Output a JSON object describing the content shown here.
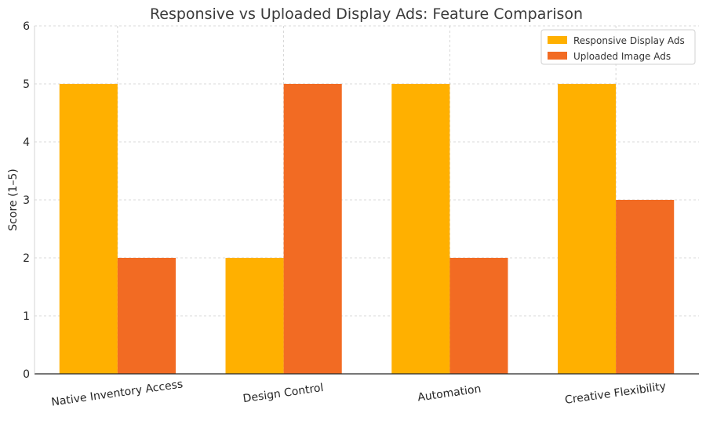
{
  "chart_data": {
    "type": "bar",
    "title": "Responsive vs Uploaded Display Ads: Feature Comparison",
    "xlabel": "",
    "ylabel": "Score (1–5)",
    "ylim": [
      0,
      6
    ],
    "yticks": [
      0,
      1,
      2,
      3,
      4,
      5,
      6
    ],
    "grid": true,
    "legend_position": "top-right",
    "categories": [
      "Native Inventory Access",
      "Design Control",
      "Automation",
      "Creative Flexibility"
    ],
    "series": [
      {
        "name": "Responsive Display Ads",
        "color": "#FFB000",
        "values": [
          5,
          2,
          5,
          5
        ]
      },
      {
        "name": "Uploaded Image Ads",
        "color": "#F26B23",
        "values": [
          2,
          5,
          2,
          3
        ]
      }
    ]
  }
}
